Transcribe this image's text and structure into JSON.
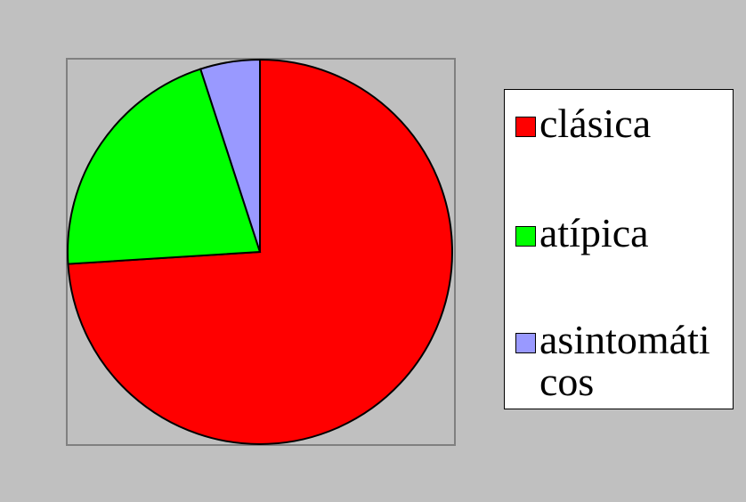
{
  "chart_data": {
    "type": "pie",
    "categories": [
      "clásica",
      "atípica",
      "asintomáticos"
    ],
    "values": [
      74,
      21,
      5
    ],
    "colors": [
      "#ff0000",
      "#00ff00",
      "#9999ff"
    ],
    "legend": "right"
  }
}
